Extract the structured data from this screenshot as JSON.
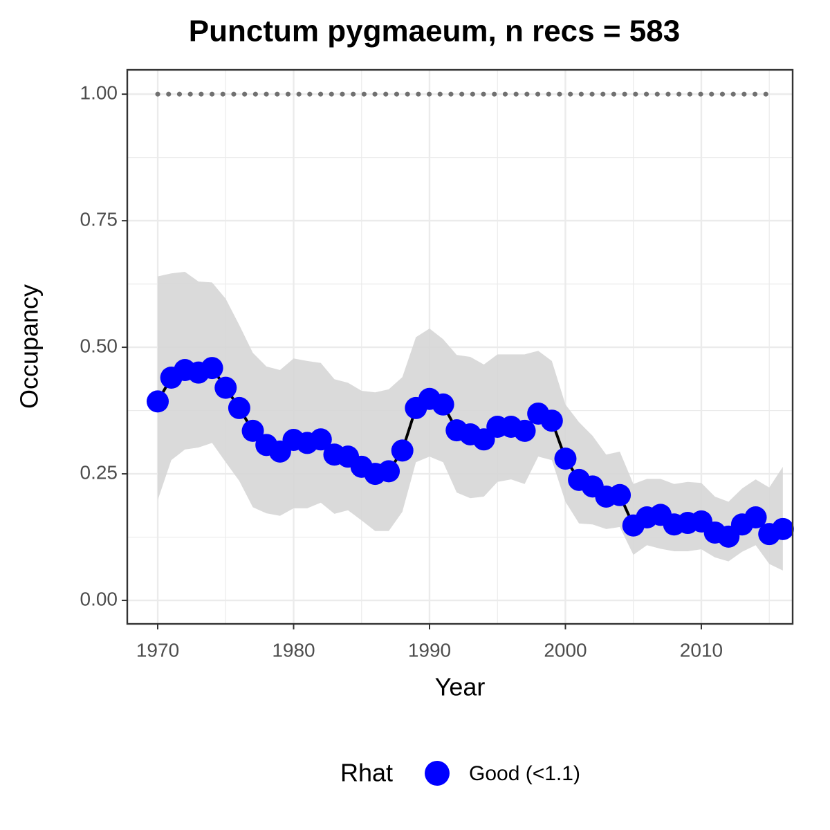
{
  "chart_data": {
    "type": "line",
    "title": "Punctum pygmaeum, n recs = 583",
    "xlabel": "Year",
    "ylabel": "Occupancy",
    "x": [
      1970,
      1971,
      1972,
      1973,
      1974,
      1975,
      1976,
      1977,
      1978,
      1979,
      1980,
      1981,
      1982,
      1983,
      1984,
      1985,
      1986,
      1987,
      1988,
      1989,
      1990,
      1991,
      1992,
      1993,
      1994,
      1995,
      1996,
      1997,
      1998,
      1999,
      2000,
      2001,
      2002,
      2003,
      2004,
      2005,
      2006,
      2007,
      2008,
      2009,
      2010,
      2011,
      2012,
      2013,
      2014,
      2015,
      2016
    ],
    "series": [
      {
        "name": "Good (<1.1)",
        "color": "#0000ff",
        "line_color": "#000000",
        "ribbon_color": "#d6d6d6",
        "values": [
          0.393,
          0.44,
          0.455,
          0.45,
          0.459,
          0.42,
          0.38,
          0.335,
          0.307,
          0.294,
          0.317,
          0.311,
          0.318,
          0.288,
          0.284,
          0.264,
          0.25,
          0.255,
          0.296,
          0.38,
          0.398,
          0.387,
          0.336,
          0.328,
          0.318,
          0.343,
          0.343,
          0.335,
          0.369,
          0.355,
          0.28,
          0.238,
          0.225,
          0.205,
          0.208,
          0.148,
          0.164,
          0.169,
          0.15,
          0.153,
          0.156,
          0.134,
          0.126,
          0.15,
          0.164,
          0.131,
          0.141
        ],
        "upper": [
          0.64,
          0.646,
          0.649,
          0.63,
          0.628,
          0.596,
          0.544,
          0.489,
          0.462,
          0.455,
          0.478,
          0.473,
          0.469,
          0.437,
          0.43,
          0.414,
          0.411,
          0.417,
          0.441,
          0.52,
          0.537,
          0.516,
          0.485,
          0.481,
          0.466,
          0.486,
          0.486,
          0.486,
          0.493,
          0.473,
          0.387,
          0.352,
          0.325,
          0.288,
          0.294,
          0.23,
          0.24,
          0.24,
          0.23,
          0.234,
          0.232,
          0.205,
          0.195,
          0.221,
          0.239,
          0.223,
          0.264
        ],
        "lower": [
          0.198,
          0.277,
          0.298,
          0.302,
          0.311,
          0.273,
          0.236,
          0.184,
          0.172,
          0.167,
          0.182,
          0.182,
          0.193,
          0.171,
          0.178,
          0.158,
          0.137,
          0.137,
          0.175,
          0.273,
          0.284,
          0.273,
          0.213,
          0.202,
          0.205,
          0.234,
          0.239,
          0.23,
          0.284,
          0.277,
          0.195,
          0.152,
          0.15,
          0.141,
          0.145,
          0.09,
          0.109,
          0.102,
          0.097,
          0.097,
          0.101,
          0.085,
          0.077,
          0.096,
          0.109,
          0.072,
          0.059
        ]
      }
    ],
    "reference": {
      "color": "#707070",
      "values": [
        1,
        1,
        1,
        1,
        1,
        1,
        1,
        1,
        1,
        1,
        1,
        1,
        1,
        1,
        1,
        1,
        1,
        1,
        1,
        1,
        1,
        1,
        1,
        1,
        1,
        1,
        1,
        1,
        1,
        1,
        1,
        1,
        1,
        1,
        1,
        1,
        1,
        1,
        1,
        1,
        1,
        1,
        1,
        1,
        1,
        1,
        null
      ]
    },
    "legend_title": "Rhat",
    "legend_position": "bottom",
    "xlim": [
      1967.76,
      2016.72
    ],
    "ylim": [
      -0.0464,
      1.048
    ],
    "xticks": [
      1970,
      1980,
      1990,
      2000,
      2010
    ],
    "yticks": [
      {
        "value": 0,
        "label": "0.00"
      },
      {
        "value": 0.25,
        "label": "0.25"
      },
      {
        "value": 0.5,
        "label": "0.50"
      },
      {
        "value": 0.75,
        "label": "0.75"
      },
      {
        "value": 1,
        "label": "1.00"
      }
    ],
    "grid": true
  }
}
